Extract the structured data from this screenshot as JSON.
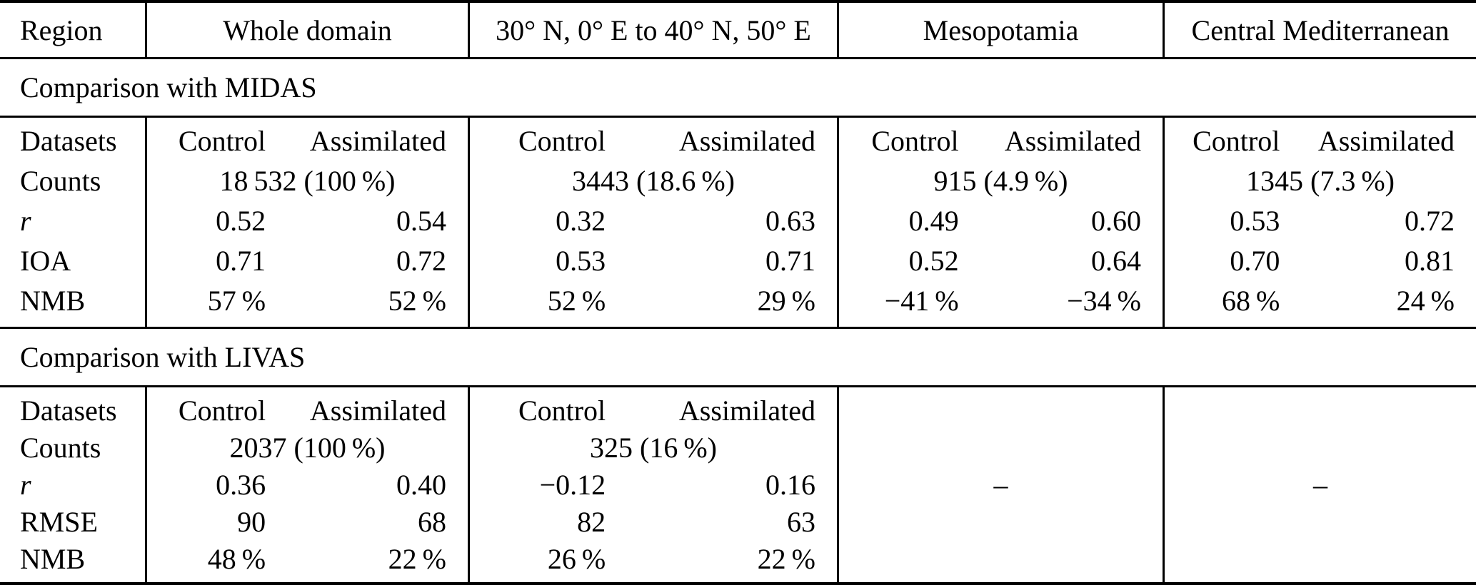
{
  "table": {
    "header": {
      "region_label": "Region",
      "columns": [
        "Whole domain",
        "30° N, 0° E to 40° N, 50° E",
        "Mesopotamia",
        "Central Mediterranean"
      ]
    },
    "subheaders": {
      "control": "Control",
      "assimilated": "Assimilated"
    },
    "sections": [
      {
        "title": "Comparison with MIDAS",
        "row_labels": {
          "datasets": "Datasets",
          "counts": "Counts",
          "r": "r",
          "metric": "IOA",
          "nmb": "NMB"
        },
        "columns": [
          {
            "counts": "18 532 (100 %)",
            "r": [
              "0.52",
              "0.54"
            ],
            "metric": [
              "0.71",
              "0.72"
            ],
            "nmb": [
              "57 %",
              "52 %"
            ]
          },
          {
            "counts": "3443 (18.6 %)",
            "r": [
              "0.32",
              "0.63"
            ],
            "metric": [
              "0.53",
              "0.71"
            ],
            "nmb": [
              "52 %",
              "29 %"
            ]
          },
          {
            "counts": "915 (4.9 %)",
            "r": [
              "0.49",
              "0.60"
            ],
            "metric": [
              "0.52",
              "0.64"
            ],
            "nmb": [
              "−41 %",
              "−34 %"
            ]
          },
          {
            "counts": "1345 (7.3 %)",
            "r": [
              "0.53",
              "0.72"
            ],
            "metric": [
              "0.70",
              "0.81"
            ],
            "nmb": [
              "68 %",
              "24 %"
            ]
          }
        ]
      },
      {
        "title": "Comparison with LIVAS",
        "row_labels": {
          "datasets": "Datasets",
          "counts": "Counts",
          "r": "r",
          "metric": "RMSE",
          "nmb": "NMB"
        },
        "columns": [
          {
            "counts": "2037 (100 %)",
            "r": [
              "0.36",
              "0.40"
            ],
            "metric": [
              "90",
              "68"
            ],
            "nmb": [
              "48 %",
              "22 %"
            ]
          },
          {
            "counts": "325 (16 %)",
            "r": [
              "−0.12",
              "0.16"
            ],
            "metric": [
              "82",
              "63"
            ],
            "nmb": [
              "26 %",
              "22 %"
            ]
          },
          {
            "empty_placeholder": "–"
          },
          {
            "empty_placeholder": "–"
          }
        ]
      }
    ]
  }
}
